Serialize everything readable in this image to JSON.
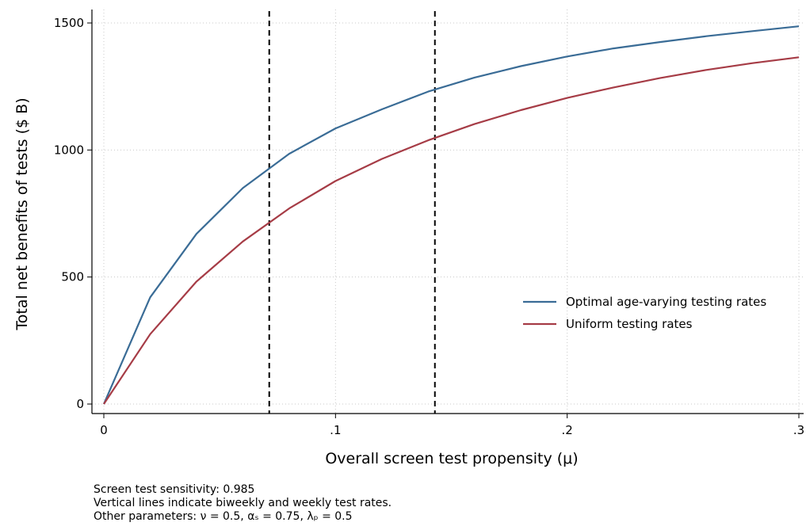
{
  "chart_data": {
    "type": "line",
    "xlabel": "Overall screen test propensity (μ)",
    "ylabel": "Total net benefits of tests ($ B)",
    "xlim": [
      0,
      0.3
    ],
    "ylim": [
      0,
      1500
    ],
    "x_ticks": [
      0,
      0.1,
      0.2,
      0.3
    ],
    "x_tick_labels": [
      "0",
      ".1",
      ".2",
      ".3"
    ],
    "y_ticks": [
      0,
      500,
      1000,
      1500
    ],
    "y_tick_labels": [
      "0",
      "500",
      "1000",
      "1500"
    ],
    "grid": true,
    "legend_position": "center-right",
    "vertical_lines": [
      0.0714,
      0.1429
    ],
    "series": [
      {
        "name": "Optimal age-varying testing rates",
        "color": "#3a6c96",
        "x": [
          0,
          0.02,
          0.04,
          0.06,
          0.08,
          0.1,
          0.12,
          0.14,
          0.16,
          0.18,
          0.2,
          0.22,
          0.24,
          0.26,
          0.28,
          0.3
        ],
        "y": [
          0,
          420,
          670,
          850,
          985,
          1085,
          1160,
          1230,
          1285,
          1330,
          1368,
          1400,
          1425,
          1448,
          1468,
          1487
        ]
      },
      {
        "name": "Uniform testing rates",
        "color": "#a63c46",
        "x": [
          0,
          0.02,
          0.04,
          0.06,
          0.08,
          0.1,
          0.12,
          0.14,
          0.16,
          0.18,
          0.2,
          0.22,
          0.24,
          0.26,
          0.28,
          0.3
        ],
        "y": [
          0,
          275,
          482,
          640,
          770,
          878,
          965,
          1038,
          1102,
          1157,
          1205,
          1246,
          1283,
          1315,
          1342,
          1365
        ]
      }
    ]
  },
  "notes": {
    "line1": "Screen test sensitivity: 0.985",
    "line2": "Vertical lines indicate biweekly and weekly test rates.",
    "line3": "Other parameters: ν = 0.5, αₛ = 0.75, λₚ = 0.5"
  }
}
